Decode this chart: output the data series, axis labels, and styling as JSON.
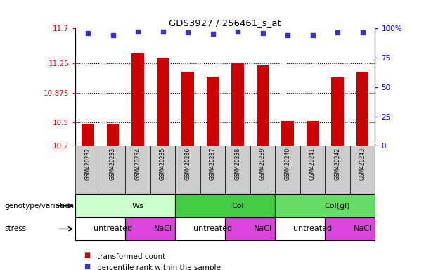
{
  "title": "GDS3927 / 256461_s_at",
  "samples": [
    "GSM420232",
    "GSM420233",
    "GSM420234",
    "GSM420235",
    "GSM420236",
    "GSM420237",
    "GSM420238",
    "GSM420239",
    "GSM420240",
    "GSM420241",
    "GSM420242",
    "GSM420243"
  ],
  "bar_values": [
    10.48,
    10.48,
    11.38,
    11.33,
    11.15,
    11.08,
    11.25,
    11.23,
    10.52,
    10.52,
    11.07,
    11.15
  ],
  "percentile_y_values": [
    11.64,
    11.61,
    11.66,
    11.66,
    11.65,
    11.63,
    11.66,
    11.64,
    11.61,
    11.61,
    11.65,
    11.65
  ],
  "ylim": [
    10.2,
    11.7
  ],
  "yticks": [
    10.2,
    10.5,
    10.875,
    11.25,
    11.7
  ],
  "ytick_labels": [
    "10.2",
    "10.5",
    "10.875",
    "11.25",
    "11.7"
  ],
  "right_ytick_pcts": [
    0,
    25,
    50,
    75,
    100
  ],
  "right_ytick_labels": [
    "0",
    "25",
    "50",
    "75",
    "100%"
  ],
  "bar_color": "#cc0000",
  "percentile_color": "#3333cc",
  "bar_bottom": 10.2,
  "hlines": [
    10.5,
    10.875,
    11.25
  ],
  "genotype_groups": [
    {
      "label": "Ws",
      "start": 0,
      "end": 4,
      "color": "#ccffcc"
    },
    {
      "label": "Col",
      "start": 4,
      "end": 8,
      "color": "#44cc44"
    },
    {
      "label": "Col(gl)",
      "start": 8,
      "end": 12,
      "color": "#66dd66"
    }
  ],
  "stress_groups": [
    {
      "label": "untreated",
      "start": 0,
      "end": 2,
      "color": "#ffffff"
    },
    {
      "label": "NaCl",
      "start": 2,
      "end": 4,
      "color": "#dd44dd"
    },
    {
      "label": "untreated",
      "start": 4,
      "end": 6,
      "color": "#ffffff"
    },
    {
      "label": "NaCl",
      "start": 6,
      "end": 8,
      "color": "#dd44dd"
    },
    {
      "label": "untreated",
      "start": 8,
      "end": 10,
      "color": "#ffffff"
    },
    {
      "label": "NaCl",
      "start": 10,
      "end": 12,
      "color": "#dd44dd"
    }
  ],
  "legend_items": [
    {
      "label": "transformed count",
      "color": "#cc0000"
    },
    {
      "label": "percentile rank within the sample",
      "color": "#3333cc"
    }
  ],
  "genotype_label": "genotype/variation",
  "stress_label": "stress",
  "sample_bg_color": "#cccccc",
  "fig_width": 6.13,
  "fig_height": 3.84,
  "dpi": 100
}
